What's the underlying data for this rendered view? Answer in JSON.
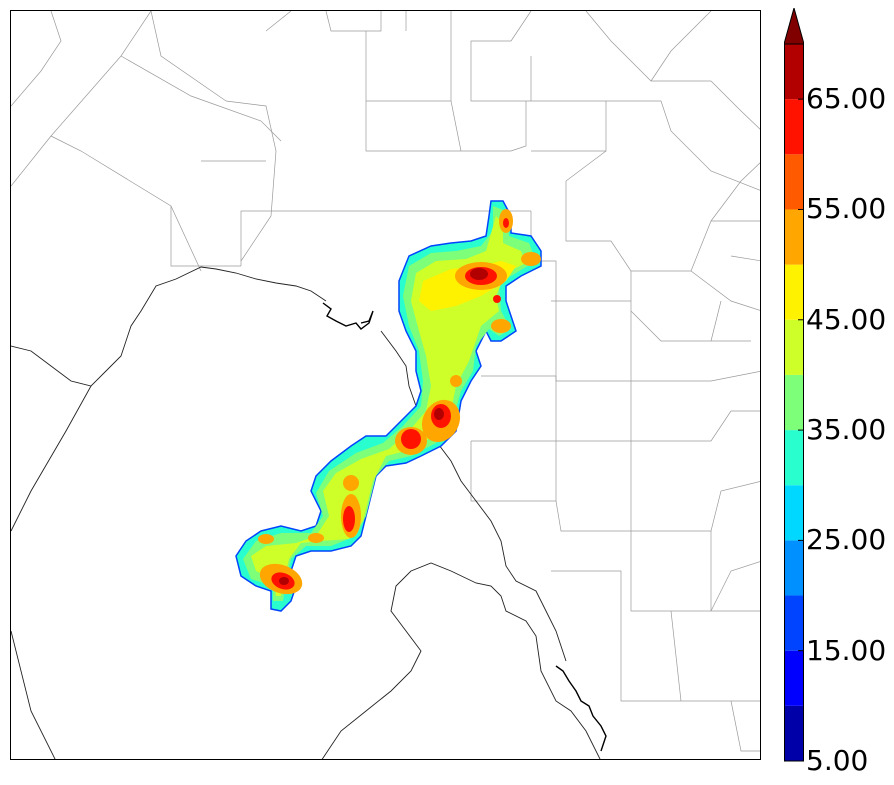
{
  "colorbar": {
    "labels": [
      "5.00",
      "15.00",
      "25.00",
      "35.00",
      "45.00",
      "55.00",
      "65.00"
    ],
    "bands": [
      {
        "min": 5,
        "max": 10,
        "color": "#0000a8"
      },
      {
        "min": 10,
        "max": 15,
        "color": "#0000ff"
      },
      {
        "min": 15,
        "max": 20,
        "color": "#0044ff"
      },
      {
        "min": 20,
        "max": 25,
        "color": "#0090ff"
      },
      {
        "min": 25,
        "max": 30,
        "color": "#00d8ff"
      },
      {
        "min": 30,
        "max": 35,
        "color": "#29ffce"
      },
      {
        "min": 35,
        "max": 40,
        "color": "#7dff7a"
      },
      {
        "min": 40,
        "max": 45,
        "color": "#ceff29"
      },
      {
        "min": 45,
        "max": 50,
        "color": "#fff200"
      },
      {
        "min": 50,
        "max": 55,
        "color": "#ffa600"
      },
      {
        "min": 55,
        "max": 60,
        "color": "#ff5a00"
      },
      {
        "min": 60,
        "max": 65,
        "color": "#ff1300"
      },
      {
        "min": 65,
        "max": 70,
        "color": "#b20000"
      }
    ],
    "extend_color": "#800000",
    "extend": "max"
  },
  "map": {
    "feature": "radar-reflectivity-storm-line",
    "borders": [
      "county-lines",
      "coastline",
      "river"
    ]
  }
}
